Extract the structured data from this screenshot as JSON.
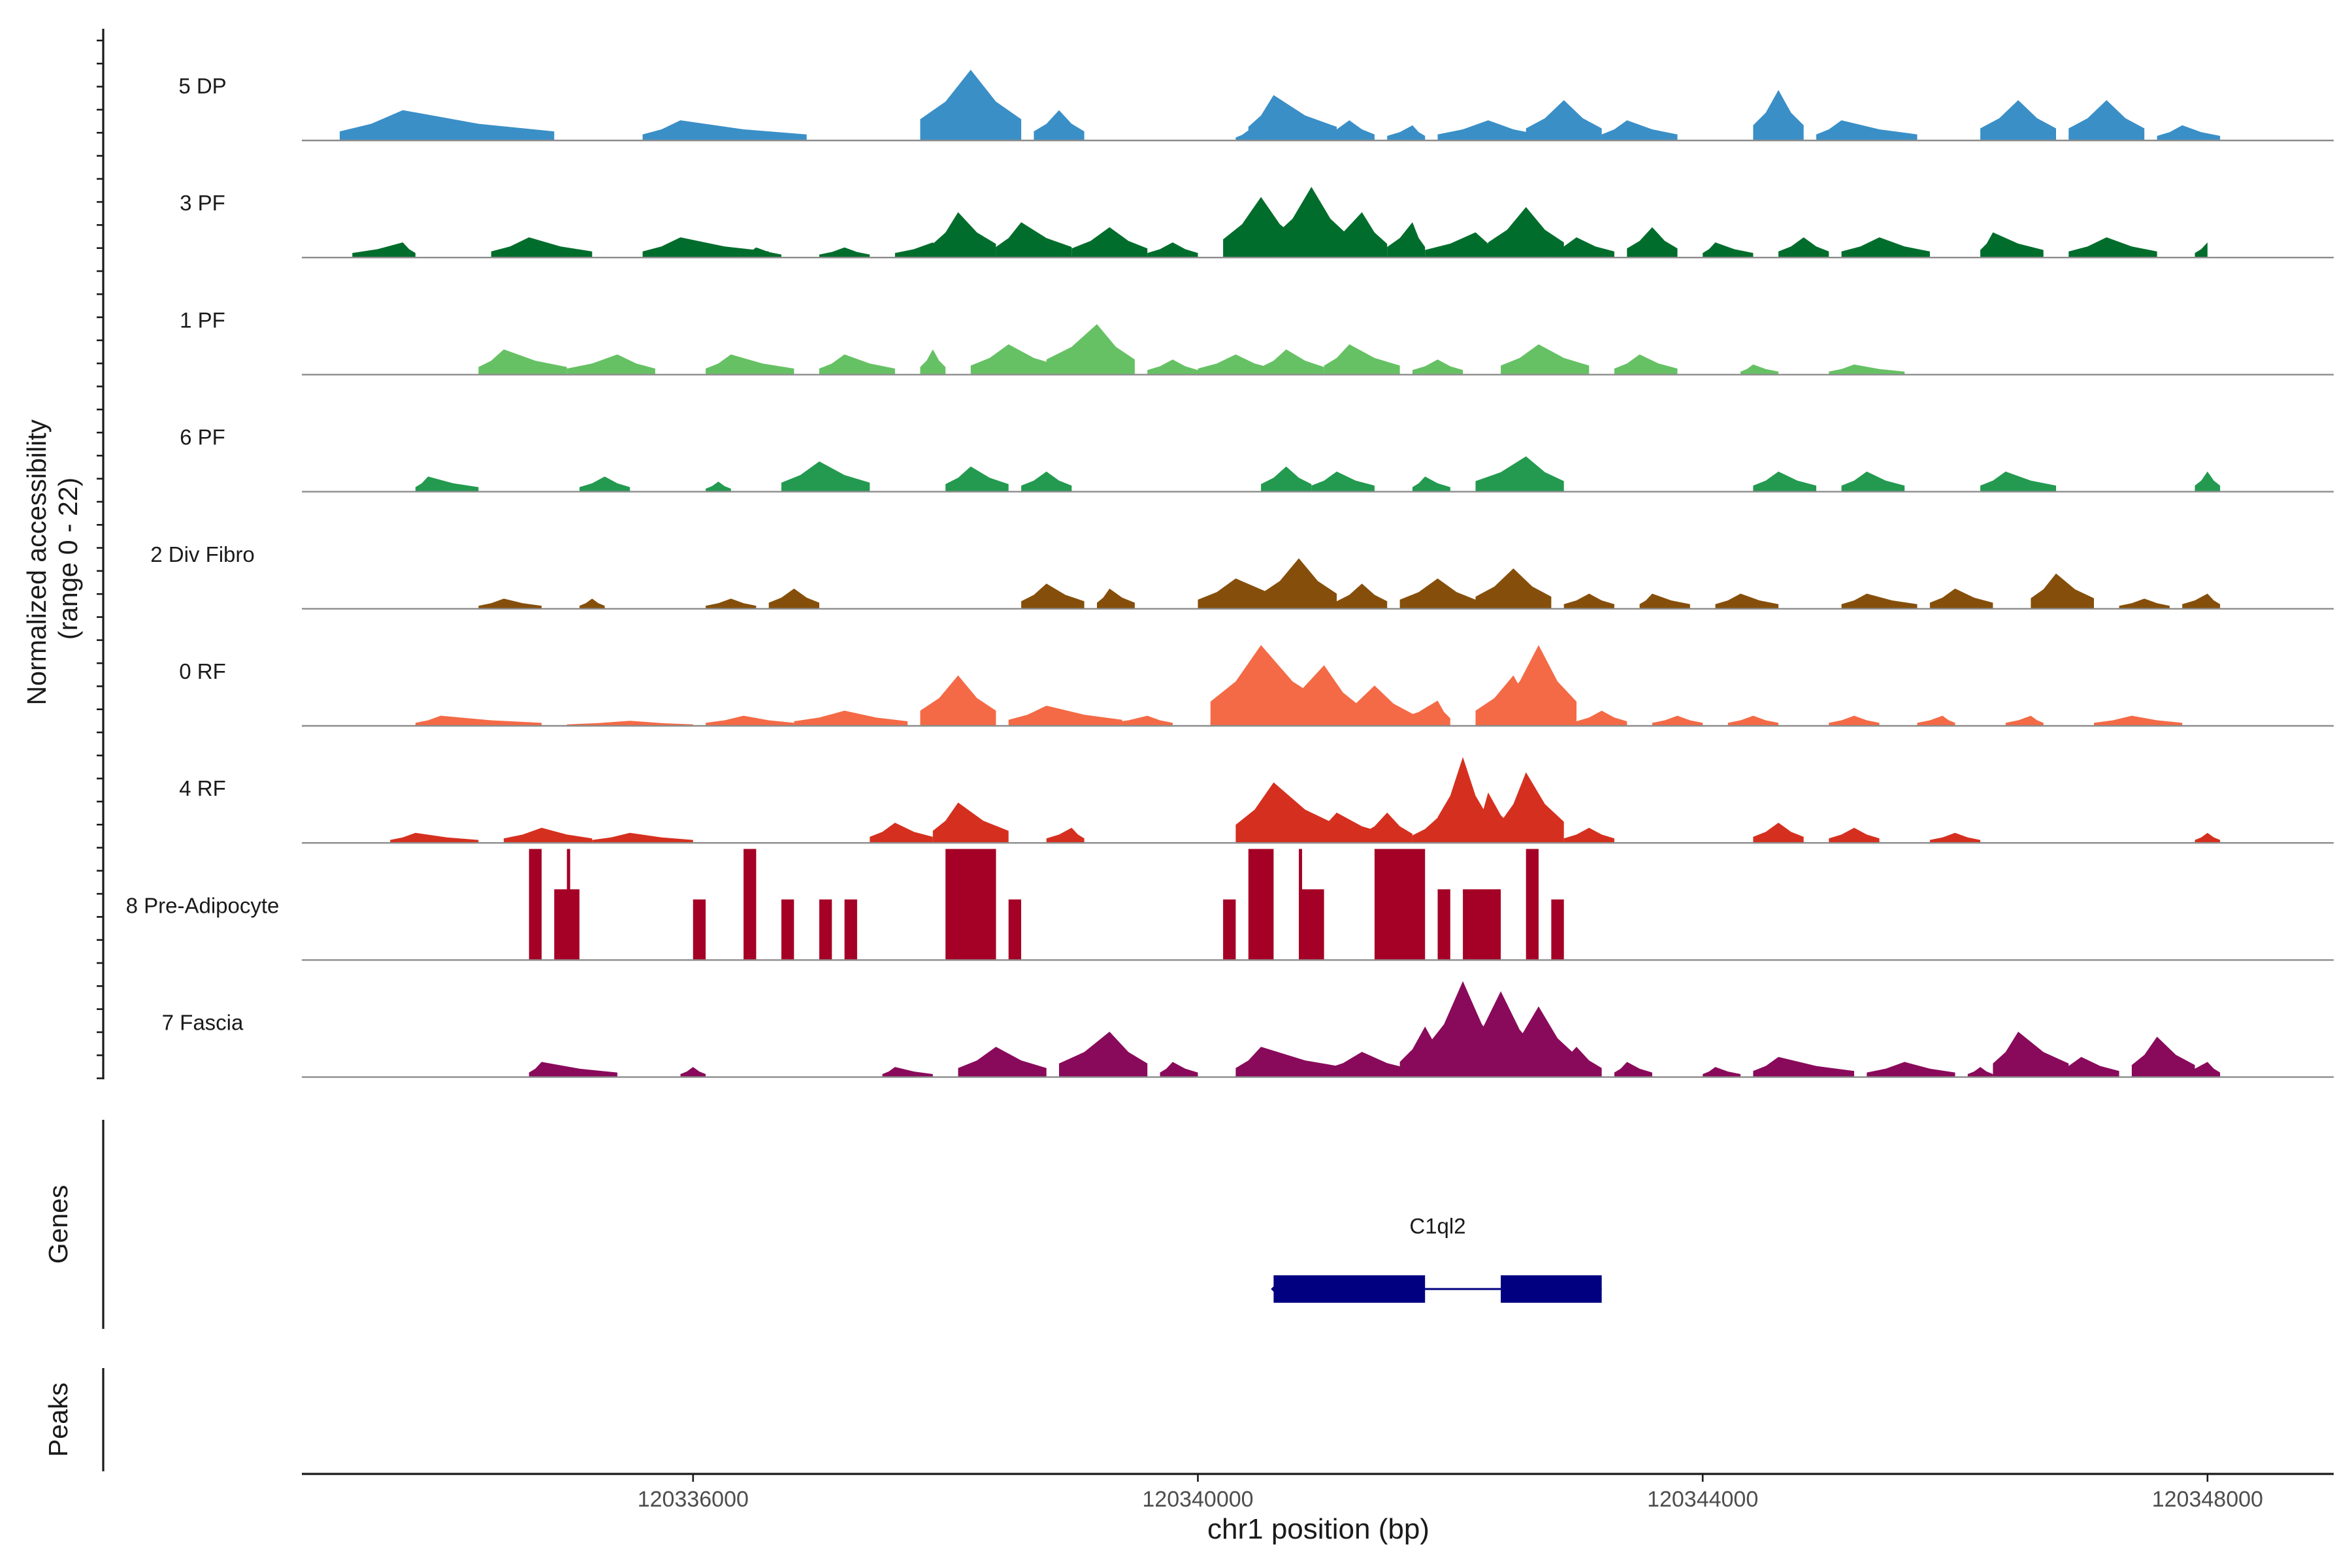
{
  "chart_data": {
    "type": "area",
    "title": "",
    "ylabel_line1": "Normalized accessibility",
    "ylabel_line2": "(range 0 - 22)",
    "yrange": [
      0,
      22
    ],
    "xlabel": "chr1 position (bp)",
    "xlim": [
      120332900,
      120349000
    ],
    "x_ticks": [
      120336000,
      120340000,
      120344000,
      120348000
    ],
    "x_tick_labels": [
      "120336000",
      "120340000",
      "120344000",
      "120348000"
    ],
    "tracks": [
      {
        "name": "5 DP",
        "color": "#3A8FC7",
        "peaks": [
          [
            120333700,
            120333200,
            120334900,
            6
          ],
          [
            120335900,
            120335600,
            120336900,
            4
          ],
          [
            120338200,
            120337800,
            120338600,
            14
          ],
          [
            120338900,
            120338700,
            120339100,
            6
          ],
          [
            120339000,
            120338800,
            120339000,
            3
          ],
          [
            120340400,
            120340300,
            120340500,
            2
          ],
          [
            120340600,
            120340400,
            120341100,
            9
          ],
          [
            120341200,
            120341000,
            120341400,
            4
          ],
          [
            120341700,
            120341500,
            120341800,
            3
          ],
          [
            120342300,
            120341900,
            120342700,
            4
          ],
          [
            120342900,
            120342600,
            120343200,
            8
          ],
          [
            120343400,
            120343200,
            120343800,
            4
          ],
          [
            120344600,
            120344400,
            120344800,
            10
          ],
          [
            120345100,
            120344900,
            120345700,
            4
          ],
          [
            120346500,
            120346200,
            120346800,
            8
          ],
          [
            120347200,
            120346900,
            120347500,
            8
          ],
          [
            120347800,
            120347600,
            120348100,
            3
          ]
        ]
      },
      {
        "name": "3 PF",
        "color": "#006D2C",
        "peaks": [
          [
            120333700,
            120333300,
            120333800,
            3
          ],
          [
            120334700,
            120334400,
            120335200,
            4
          ],
          [
            120335900,
            120335600,
            120336600,
            4
          ],
          [
            120336500,
            120336400,
            120336700,
            2
          ],
          [
            120337200,
            120337000,
            120337400,
            2
          ],
          [
            120337900,
            120337600,
            120338000,
            3
          ],
          [
            120338100,
            120337900,
            120338400,
            9
          ],
          [
            120338600,
            120338400,
            120339000,
            7
          ],
          [
            120339300,
            120339000,
            120339600,
            6
          ],
          [
            120339800,
            120339600,
            120340000,
            3
          ],
          [
            120340500,
            120340200,
            120340800,
            12
          ],
          [
            120340900,
            120340600,
            120341200,
            14
          ],
          [
            120341300,
            120341000,
            120341500,
            9
          ],
          [
            120341700,
            120341500,
            120341800,
            7
          ],
          [
            120342200,
            120341800,
            120342400,
            5
          ],
          [
            120342600,
            120342300,
            120342900,
            10
          ],
          [
            120343000,
            120342800,
            120343300,
            4
          ],
          [
            120343600,
            120343400,
            120343800,
            6
          ],
          [
            120344100,
            120344000,
            120344400,
            3
          ],
          [
            120344800,
            120344600,
            120345000,
            4
          ],
          [
            120345400,
            120345100,
            120345800,
            4
          ],
          [
            120346300,
            120346200,
            120346700,
            5
          ],
          [
            120347200,
            120346900,
            120347600,
            4
          ],
          [
            120348000,
            120347900,
            120348000,
            3
          ]
        ]
      },
      {
        "name": "1 PF",
        "color": "#66C164",
        "peaks": [
          [
            120334500,
            120334300,
            120335000,
            5
          ],
          [
            120335400,
            120335000,
            120335700,
            4
          ],
          [
            120336300,
            120336100,
            120336800,
            4
          ],
          [
            120337200,
            120337000,
            120337600,
            4
          ],
          [
            120337900,
            120337800,
            120338000,
            5
          ],
          [
            120338500,
            120338200,
            120338900,
            6
          ],
          [
            120339200,
            120338800,
            120339500,
            10
          ],
          [
            120339800,
            120339600,
            120340000,
            3
          ],
          [
            120340300,
            120340000,
            120340600,
            4
          ],
          [
            120340700,
            120340500,
            120341000,
            5
          ],
          [
            120341200,
            120341000,
            120341600,
            6
          ],
          [
            120341900,
            120341700,
            120342100,
            3
          ],
          [
            120342700,
            120342400,
            120343100,
            6
          ],
          [
            120343500,
            120343300,
            120343800,
            4
          ],
          [
            120344400,
            120344300,
            120344600,
            2
          ],
          [
            120345200,
            120345000,
            120345600,
            2
          ]
        ]
      },
      {
        "name": "6 PF",
        "color": "#239A4F",
        "peaks": [
          [
            120333900,
            120333800,
            120334300,
            3
          ],
          [
            120335300,
            120335100,
            120335500,
            3
          ],
          [
            120336200,
            120336100,
            120336300,
            2
          ],
          [
            120337000,
            120336700,
            120337400,
            6
          ],
          [
            120338200,
            120338000,
            120338500,
            5
          ],
          [
            120338800,
            120338600,
            120339000,
            4
          ],
          [
            120340700,
            120340500,
            120340900,
            5
          ],
          [
            120341100,
            120340900,
            120341400,
            4
          ],
          [
            120341800,
            120341700,
            120342000,
            3
          ],
          [
            120342600,
            120342200,
            120342900,
            7
          ],
          [
            120344600,
            120344400,
            120344900,
            4
          ],
          [
            120345300,
            120345100,
            120345600,
            4
          ],
          [
            120346400,
            120346200,
            120346800,
            4
          ],
          [
            120348000,
            120347900,
            120348100,
            4
          ]
        ]
      },
      {
        "name": "2 Div Fibro",
        "color": "#854F0B",
        "peaks": [
          [
            120334500,
            120334300,
            120334800,
            2
          ],
          [
            120335200,
            120335100,
            120335300,
            2
          ],
          [
            120336300,
            120336100,
            120336500,
            2
          ],
          [
            120336800,
            120336600,
            120337000,
            4
          ],
          [
            120338800,
            120338600,
            120339100,
            5
          ],
          [
            120339300,
            120339200,
            120339500,
            4
          ],
          [
            120340300,
            120340000,
            120340800,
            6
          ],
          [
            120340800,
            120340500,
            120341100,
            10
          ],
          [
            120341300,
            120341100,
            120341500,
            5
          ],
          [
            120341900,
            120341600,
            120342200,
            6
          ],
          [
            120342500,
            120342200,
            120342800,
            8
          ],
          [
            120343100,
            120342900,
            120343300,
            3
          ],
          [
            120343600,
            120343500,
            120343900,
            3
          ],
          [
            120344300,
            120344100,
            120344600,
            3
          ],
          [
            120345300,
            120345100,
            120345700,
            3
          ],
          [
            120346000,
            120345800,
            120346300,
            4
          ],
          [
            120346800,
            120346600,
            120347100,
            7
          ],
          [
            120347500,
            120347300,
            120347700,
            2
          ],
          [
            120348000,
            120347800,
            120348100,
            3
          ]
        ]
      },
      {
        "name": "0 RF",
        "color": "#F46A46",
        "peaks": [
          [
            120334000,
            120333800,
            120334800,
            2
          ],
          [
            120335500,
            120335000,
            120336000,
            1
          ],
          [
            120336400,
            120336100,
            120336800,
            2
          ],
          [
            120337200,
            120336800,
            120337700,
            3
          ],
          [
            120338100,
            120337800,
            120338400,
            10
          ],
          [
            120338800,
            120338500,
            120339400,
            4
          ],
          [
            120339600,
            120339300,
            120339800,
            2
          ],
          [
            120340300,
            120340100,
            120340500,
            3
          ],
          [
            120340500,
            120340100,
            120341000,
            16
          ],
          [
            120341000,
            120340600,
            120341300,
            12
          ],
          [
            120341400,
            120341100,
            120341700,
            8
          ],
          [
            120341900,
            120341600,
            120342000,
            5
          ],
          [
            120342500,
            120342200,
            120342700,
            10
          ],
          [
            120342700,
            120342400,
            120343000,
            16
          ],
          [
            120343200,
            120343000,
            120343400,
            3
          ],
          [
            120343800,
            120343600,
            120344000,
            2
          ],
          [
            120344400,
            120344200,
            120344600,
            2
          ],
          [
            120345200,
            120345000,
            120345400,
            2
          ],
          [
            120345900,
            120345700,
            120346000,
            2
          ],
          [
            120346600,
            120346400,
            120346700,
            2
          ],
          [
            120347400,
            120347100,
            120347800,
            2
          ]
        ]
      },
      {
        "name": "4 RF",
        "color": "#D5301F",
        "peaks": [
          [
            120333800,
            120333600,
            120334300,
            2
          ],
          [
            120334800,
            120334500,
            120335200,
            3
          ],
          [
            120335500,
            120335200,
            120336000,
            2
          ],
          [
            120337600,
            120337400,
            120337900,
            4
          ],
          [
            120338100,
            120337900,
            120338500,
            8
          ],
          [
            120339000,
            120338800,
            120339100,
            3
          ],
          [
            120340600,
            120340300,
            120341100,
            12
          ],
          [
            120341100,
            120340900,
            120341500,
            6
          ],
          [
            120341500,
            120341300,
            120341700,
            6
          ],
          [
            120341900,
            120341700,
            120342100,
            5
          ],
          [
            120342100,
            120341900,
            120342300,
            17
          ],
          [
            120342300,
            120342200,
            120342500,
            10
          ],
          [
            120342600,
            120342400,
            120342900,
            14
          ],
          [
            120343100,
            120342900,
            120343300,
            3
          ],
          [
            120344600,
            120344400,
            120344800,
            4
          ],
          [
            120345200,
            120345000,
            120345400,
            3
          ],
          [
            120346000,
            120345800,
            120346200,
            2
          ],
          [
            120348000,
            120347900,
            120348100,
            2
          ]
        ]
      },
      {
        "name": "8 Pre-Adipocyte",
        "color": "#A50026",
        "blocks": [
          [
            120334700,
            120334800,
            22
          ],
          [
            120334900,
            120335100,
            14
          ],
          [
            120335000,
            120335000,
            22
          ],
          [
            120336000,
            120336100,
            12
          ],
          [
            120336400,
            120336500,
            22
          ],
          [
            120336700,
            120336800,
            12
          ],
          [
            120337000,
            120337100,
            12
          ],
          [
            120337200,
            120337300,
            12
          ],
          [
            120338000,
            120338400,
            22
          ],
          [
            120338500,
            120338600,
            12
          ],
          [
            120340200,
            120340300,
            12
          ],
          [
            120340400,
            120340600,
            22
          ],
          [
            120340800,
            120340800,
            22
          ],
          [
            120340800,
            120341000,
            14
          ],
          [
            120341400,
            120341800,
            22
          ],
          [
            120341900,
            120342000,
            14
          ],
          [
            120342100,
            120342400,
            14
          ],
          [
            120342600,
            120342700,
            22
          ],
          [
            120342800,
            120342900,
            12
          ]
        ]
      },
      {
        "name": "7 Fascia",
        "color": "#890A5A",
        "peaks": [
          [
            120334800,
            120334700,
            120335400,
            3
          ],
          [
            120336000,
            120335900,
            120336100,
            2
          ],
          [
            120337600,
            120337500,
            120337900,
            2
          ],
          [
            120338400,
            120338100,
            120338800,
            6
          ],
          [
            120339300,
            120338900,
            120339600,
            9
          ],
          [
            120339800,
            120339700,
            120340000,
            3
          ],
          [
            120340500,
            120340300,
            120341200,
            6
          ],
          [
            120341300,
            120341000,
            120341700,
            5
          ],
          [
            120341800,
            120341600,
            120342000,
            10
          ],
          [
            120342100,
            120341800,
            120342400,
            19
          ],
          [
            120342400,
            120342100,
            120342700,
            17
          ],
          [
            120342700,
            120342400,
            120343000,
            14
          ],
          [
            120343000,
            120342800,
            120343200,
            6
          ],
          [
            120343400,
            120343300,
            120343600,
            3
          ],
          [
            120344100,
            120344000,
            120344300,
            2
          ],
          [
            120344600,
            120344400,
            120345200,
            4
          ],
          [
            120345600,
            120345300,
            120346000,
            3
          ],
          [
            120346200,
            120346100,
            120346300,
            2
          ],
          [
            120346500,
            120346300,
            120346900,
            9
          ],
          [
            120347000,
            120346800,
            120347300,
            4
          ],
          [
            120347600,
            120347400,
            120347900,
            8
          ],
          [
            120348000,
            120347800,
            120348100,
            3
          ]
        ]
      }
    ],
    "genes_panel_label": "Genes",
    "peaks_panel_label": "Peaks",
    "genes": [
      {
        "name": "C1ql2",
        "start": 120340600,
        "end": 120343200,
        "strand": "-",
        "exons": [
          [
            120340600,
            120341800
          ],
          [
            120342400,
            120343200
          ]
        ]
      }
    ]
  }
}
